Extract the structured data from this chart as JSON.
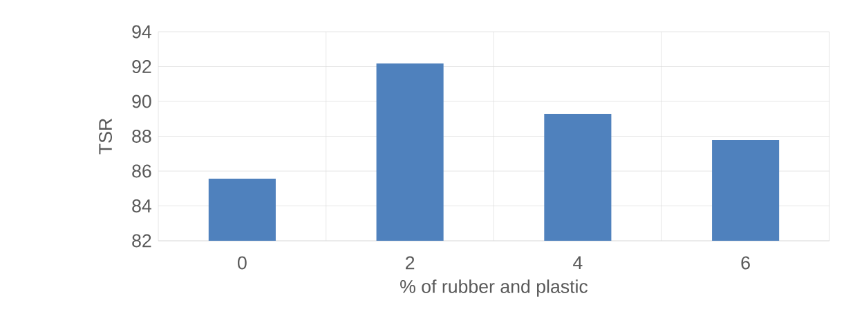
{
  "chart_data": {
    "type": "bar",
    "xlabel": "% of rubber and plastic",
    "ylabel": "TSR",
    "categories": [
      "0",
      "2",
      "4",
      "6"
    ],
    "values": [
      85.56,
      92.18,
      89.29,
      87.78
    ],
    "color": "#4f81bd",
    "ylim": [
      82,
      94
    ],
    "yticks": [
      82,
      84,
      86,
      88,
      90,
      92,
      94
    ],
    "grid": true
  }
}
